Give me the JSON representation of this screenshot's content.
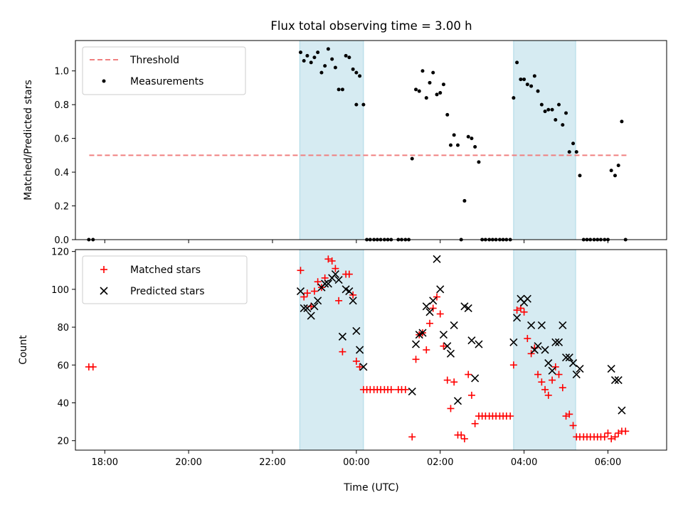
{
  "chart_data": [
    {
      "type": "scatter",
      "panel": "top",
      "title": "Flux total observing time = 3.00 h",
      "xlabel": "",
      "ylabel": "Matched/Predicted stars",
      "xlim": [
        17.3,
        31.4
      ],
      "ylim": [
        0.0,
        1.18
      ],
      "yticks": [
        0.0,
        0.2,
        0.4,
        0.6,
        0.8,
        1.0
      ],
      "ytick_labels": [
        "0.0",
        "0.2",
        "0.4",
        "0.6",
        "0.8",
        "1.0"
      ],
      "xticks": [
        18,
        20,
        22,
        24,
        26,
        28,
        30
      ],
      "legend_position": "top-left",
      "legend": [
        "Threshold",
        "Measurements"
      ],
      "shaded_intervals": [
        [
          22.65,
          24.17
        ],
        [
          27.75,
          29.23
        ]
      ],
      "threshold": {
        "name": "Threshold",
        "value": 0.5,
        "x_range": [
          17.63,
          30.45
        ],
        "color": "#f08080"
      },
      "series": [
        {
          "name": "Measurements",
          "color": "#000000",
          "points": [
            [
              17.62,
              0.0
            ],
            [
              17.72,
              0.0
            ],
            [
              22.67,
              1.11
            ],
            [
              22.75,
              1.06
            ],
            [
              22.83,
              1.09
            ],
            [
              22.92,
              1.05
            ],
            [
              23.0,
              1.08
            ],
            [
              23.08,
              1.11
            ],
            [
              23.17,
              0.99
            ],
            [
              23.25,
              1.03
            ],
            [
              23.33,
              1.13
            ],
            [
              23.42,
              1.07
            ],
            [
              23.5,
              1.02
            ],
            [
              23.58,
              0.89
            ],
            [
              23.67,
              0.89
            ],
            [
              23.75,
              1.09
            ],
            [
              23.83,
              1.08
            ],
            [
              23.92,
              1.01
            ],
            [
              24.0,
              0.99
            ],
            [
              24.08,
              0.97
            ],
            [
              24.0,
              0.8
            ],
            [
              24.17,
              0.8
            ],
            [
              24.25,
              0.0
            ],
            [
              24.33,
              0.0
            ],
            [
              24.42,
              0.0
            ],
            [
              24.5,
              0.0
            ],
            [
              24.58,
              0.0
            ],
            [
              24.67,
              0.0
            ],
            [
              24.75,
              0.0
            ],
            [
              24.83,
              0.0
            ],
            [
              25.0,
              0.0
            ],
            [
              25.08,
              0.0
            ],
            [
              25.17,
              0.0
            ],
            [
              25.25,
              0.0
            ],
            [
              25.33,
              0.48
            ],
            [
              25.42,
              0.89
            ],
            [
              25.5,
              0.88
            ],
            [
              25.58,
              1.0
            ],
            [
              25.67,
              0.84
            ],
            [
              25.75,
              0.93
            ],
            [
              25.83,
              0.99
            ],
            [
              25.92,
              0.86
            ],
            [
              26.0,
              0.87
            ],
            [
              26.08,
              0.92
            ],
            [
              26.17,
              0.74
            ],
            [
              26.25,
              0.56
            ],
            [
              26.33,
              0.62
            ],
            [
              26.42,
              0.56
            ],
            [
              26.5,
              0.0
            ],
            [
              26.58,
              0.23
            ],
            [
              26.67,
              0.61
            ],
            [
              26.75,
              0.6
            ],
            [
              26.83,
              0.55
            ],
            [
              26.92,
              0.46
            ],
            [
              27.0,
              0.0
            ],
            [
              27.08,
              0.0
            ],
            [
              27.17,
              0.0
            ],
            [
              27.25,
              0.0
            ],
            [
              27.33,
              0.0
            ],
            [
              27.42,
              0.0
            ],
            [
              27.5,
              0.0
            ],
            [
              27.58,
              0.0
            ],
            [
              27.67,
              0.0
            ],
            [
              27.75,
              0.84
            ],
            [
              27.83,
              1.05
            ],
            [
              27.92,
              0.95
            ],
            [
              28.0,
              0.95
            ],
            [
              28.08,
              0.92
            ],
            [
              28.17,
              0.91
            ],
            [
              28.25,
              0.97
            ],
            [
              28.33,
              0.88
            ],
            [
              28.42,
              0.8
            ],
            [
              28.5,
              0.76
            ],
            [
              28.58,
              0.77
            ],
            [
              28.67,
              0.77
            ],
            [
              28.75,
              0.71
            ],
            [
              28.83,
              0.8
            ],
            [
              28.92,
              0.68
            ],
            [
              29.0,
              0.75
            ],
            [
              29.08,
              0.52
            ],
            [
              29.17,
              0.57
            ],
            [
              29.25,
              0.52
            ],
            [
              29.33,
              0.38
            ],
            [
              29.42,
              0.0
            ],
            [
              29.5,
              0.0
            ],
            [
              29.58,
              0.0
            ],
            [
              29.67,
              0.0
            ],
            [
              29.75,
              0.0
            ],
            [
              29.83,
              0.0
            ],
            [
              29.92,
              0.0
            ],
            [
              30.0,
              0.0
            ],
            [
              30.08,
              0.41
            ],
            [
              30.17,
              0.38
            ],
            [
              30.25,
              0.44
            ],
            [
              30.33,
              0.7
            ],
            [
              30.42,
              0.0
            ]
          ]
        }
      ]
    },
    {
      "type": "scatter",
      "panel": "bottom",
      "title": "",
      "xlabel": "Time (UTC)",
      "ylabel": "Count",
      "xlim": [
        17.3,
        31.4
      ],
      "ylim": [
        15,
        121
      ],
      "yticks": [
        20,
        40,
        60,
        80,
        100,
        120
      ],
      "ytick_labels": [
        "20",
        "40",
        "60",
        "80",
        "100",
        "120"
      ],
      "xticks": [
        18,
        20,
        22,
        24,
        26,
        28,
        30
      ],
      "xtick_labels": [
        "18:00",
        "20:00",
        "22:00",
        "00:00",
        "02:00",
        "04:00",
        "06:00"
      ],
      "legend_position": "top-left",
      "legend": [
        "Matched stars",
        "Predicted stars"
      ],
      "shaded_intervals": [
        [
          22.65,
          24.17
        ],
        [
          27.75,
          29.23
        ]
      ],
      "series": [
        {
          "name": "Matched stars",
          "marker": "plus",
          "color": "#ff0000",
          "points": [
            [
              17.62,
              59
            ],
            [
              17.72,
              59
            ],
            [
              22.67,
              110
            ],
            [
              22.75,
              96
            ],
            [
              22.83,
              98
            ],
            [
              22.92,
              91
            ],
            [
              23.0,
              99
            ],
            [
              23.08,
              104
            ],
            [
              23.17,
              101
            ],
            [
              23.25,
              106
            ],
            [
              23.33,
              116
            ],
            [
              23.42,
              115
            ],
            [
              23.5,
              111
            ],
            [
              23.58,
              94
            ],
            [
              23.67,
              67
            ],
            [
              23.75,
              108
            ],
            [
              23.83,
              108
            ],
            [
              23.92,
              97
            ],
            [
              24.0,
              62
            ],
            [
              24.08,
              59
            ],
            [
              24.17,
              47
            ],
            [
              24.25,
              47
            ],
            [
              24.33,
              47
            ],
            [
              24.42,
              47
            ],
            [
              24.5,
              47
            ],
            [
              24.58,
              47
            ],
            [
              24.67,
              47
            ],
            [
              24.75,
              47
            ],
            [
              24.83,
              47
            ],
            [
              25.0,
              47
            ],
            [
              25.08,
              47
            ],
            [
              25.17,
              47
            ],
            [
              25.33,
              22
            ],
            [
              25.42,
              63
            ],
            [
              25.5,
              76
            ],
            [
              25.58,
              77
            ],
            [
              25.67,
              68
            ],
            [
              25.75,
              82
            ],
            [
              25.83,
              90
            ],
            [
              25.92,
              96
            ],
            [
              26.0,
              87
            ],
            [
              26.08,
              70
            ],
            [
              26.17,
              52
            ],
            [
              26.25,
              37
            ],
            [
              26.33,
              51
            ],
            [
              26.42,
              23
            ],
            [
              26.5,
              23
            ],
            [
              26.58,
              21
            ],
            [
              26.67,
              55
            ],
            [
              26.75,
              44
            ],
            [
              26.83,
              29
            ],
            [
              26.92,
              33
            ],
            [
              27.0,
              33
            ],
            [
              27.08,
              33
            ],
            [
              27.17,
              33
            ],
            [
              27.25,
              33
            ],
            [
              27.33,
              33
            ],
            [
              27.42,
              33
            ],
            [
              27.5,
              33
            ],
            [
              27.58,
              33
            ],
            [
              27.67,
              33
            ],
            [
              27.75,
              60
            ],
            [
              27.83,
              89
            ],
            [
              27.92,
              90
            ],
            [
              28.0,
              88
            ],
            [
              28.08,
              74
            ],
            [
              28.17,
              66
            ],
            [
              28.25,
              69
            ],
            [
              28.33,
              55
            ],
            [
              28.42,
              51
            ],
            [
              28.5,
              47
            ],
            [
              28.58,
              44
            ],
            [
              28.67,
              52
            ],
            [
              28.75,
              59
            ],
            [
              28.83,
              55
            ],
            [
              28.92,
              48
            ],
            [
              29.0,
              33
            ],
            [
              29.08,
              34
            ],
            [
              29.17,
              28
            ],
            [
              29.25,
              22
            ],
            [
              29.33,
              22
            ],
            [
              29.42,
              22
            ],
            [
              29.5,
              22
            ],
            [
              29.58,
              22
            ],
            [
              29.67,
              22
            ],
            [
              29.75,
              22
            ],
            [
              29.83,
              22
            ],
            [
              29.92,
              22
            ],
            [
              30.0,
              24
            ],
            [
              30.08,
              21
            ],
            [
              30.17,
              22
            ],
            [
              30.25,
              24
            ],
            [
              30.33,
              25
            ],
            [
              30.42,
              25
            ]
          ]
        },
        {
          "name": "Predicted stars",
          "marker": "x",
          "color": "#000000",
          "points": [
            [
              22.67,
              99
            ],
            [
              22.75,
              90
            ],
            [
              22.83,
              90
            ],
            [
              22.92,
              86
            ],
            [
              23.0,
              91
            ],
            [
              23.08,
              94
            ],
            [
              23.17,
              101
            ],
            [
              23.25,
              103
            ],
            [
              23.33,
              103
            ],
            [
              23.42,
              106
            ],
            [
              23.5,
              108
            ],
            [
              23.58,
              105
            ],
            [
              23.67,
              75
            ],
            [
              23.75,
              100
            ],
            [
              23.83,
              99
            ],
            [
              23.92,
              94
            ],
            [
              24.0,
              78
            ],
            [
              24.08,
              68
            ],
            [
              24.17,
              59
            ],
            [
              25.33,
              46
            ],
            [
              25.42,
              71
            ],
            [
              25.5,
              76
            ],
            [
              25.58,
              77
            ],
            [
              25.67,
              91
            ],
            [
              25.75,
              88
            ],
            [
              25.83,
              94
            ],
            [
              25.92,
              116
            ],
            [
              26.0,
              100
            ],
            [
              26.08,
              76
            ],
            [
              26.17,
              70
            ],
            [
              26.25,
              66
            ],
            [
              26.33,
              81
            ],
            [
              26.42,
              41
            ],
            [
              26.58,
              91
            ],
            [
              26.67,
              90
            ],
            [
              26.75,
              73
            ],
            [
              26.83,
              53
            ],
            [
              26.92,
              71
            ],
            [
              27.75,
              72
            ],
            [
              27.83,
              85
            ],
            [
              27.92,
              95
            ],
            [
              28.0,
              93
            ],
            [
              28.08,
              95
            ],
            [
              28.17,
              81
            ],
            [
              28.25,
              68
            ],
            [
              28.33,
              70
            ],
            [
              28.42,
              81
            ],
            [
              28.5,
              68
            ],
            [
              28.58,
              61
            ],
            [
              28.67,
              57
            ],
            [
              28.75,
              72
            ],
            [
              28.83,
              72
            ],
            [
              28.92,
              81
            ],
            [
              29.0,
              64
            ],
            [
              29.08,
              64
            ],
            [
              29.17,
              61
            ],
            [
              29.25,
              55
            ],
            [
              29.33,
              58
            ],
            [
              30.08,
              58
            ],
            [
              30.17,
              52
            ],
            [
              30.25,
              52
            ],
            [
              30.33,
              36
            ]
          ]
        }
      ]
    }
  ]
}
